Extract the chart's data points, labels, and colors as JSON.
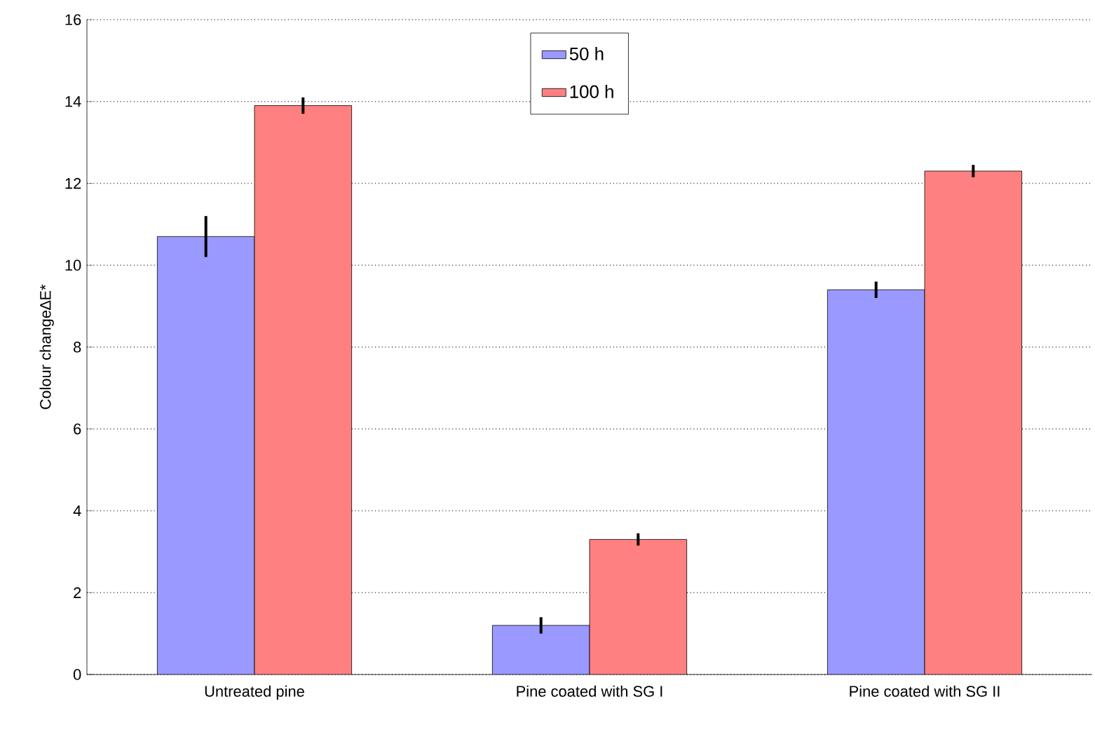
{
  "chart_data": {
    "type": "bar",
    "ylabel": "Colour change∆E*",
    "categories": [
      "Untreated pine",
      "Pine coated with SG I",
      "Pine coated with SG II"
    ],
    "series": [
      {
        "name": "50 h",
        "color": "#9999ff",
        "values": [
          10.7,
          1.2,
          9.4
        ],
        "errors": [
          0.5,
          0.2,
          0.2
        ]
      },
      {
        "name": "100 h",
        "color": "#ff8080",
        "values": [
          13.9,
          3.3,
          12.3
        ],
        "errors": [
          0.2,
          0.15,
          0.15
        ]
      }
    ],
    "ylim": [
      0,
      16
    ],
    "yticks": [
      0,
      2,
      4,
      6,
      8,
      10,
      12,
      14,
      16
    ],
    "grid": "y",
    "legend": "top"
  }
}
